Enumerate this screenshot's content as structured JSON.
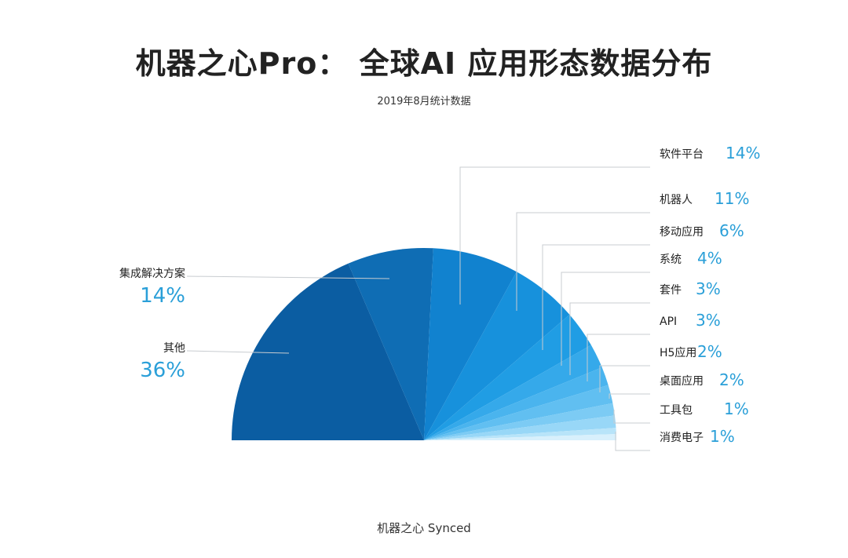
{
  "header": {
    "title": "机器之心Pro： 全球AI 应用形态数据分布",
    "subtitle": "2019年8月统计数据"
  },
  "footer": {
    "credit": "机器之心 Synced"
  },
  "chart_data": {
    "type": "pie",
    "layout": "semicircle",
    "slices": [
      {
        "label": "其他",
        "value": 36,
        "value_label": "36%",
        "color": "#0b5da2"
      },
      {
        "label": "集成解决方案",
        "value": 14,
        "value_label": "14%",
        "color": "#0f6db4"
      },
      {
        "label": "软件平台",
        "value": 14,
        "value_label": "14%",
        "color": "#1182cf"
      },
      {
        "label": "机器人",
        "value": 11,
        "value_label": "11%",
        "color": "#1791dc"
      },
      {
        "label": "移动应用",
        "value": 6,
        "value_label": "6%",
        "color": "#209de4"
      },
      {
        "label": "系统",
        "value": 4,
        "value_label": "4%",
        "color": "#35a9ea"
      },
      {
        "label": "套件",
        "value": 3,
        "value_label": "3%",
        "color": "#4ab4ee"
      },
      {
        "label": "API",
        "value": 3,
        "value_label": "3%",
        "color": "#61bff1"
      },
      {
        "label": "H5应用",
        "value": 2,
        "value_label": "2%",
        "color": "#7ccbf4"
      },
      {
        "label": "桌面应用",
        "value": 2,
        "value_label": "2%",
        "color": "#98d7f7"
      },
      {
        "label": "工具包",
        "value": 1,
        "value_label": "1%",
        "color": "#b8e4f9"
      },
      {
        "label": "消费电子",
        "value": 1,
        "value_label": "1%",
        "color": "#d8f0fc"
      }
    ]
  }
}
